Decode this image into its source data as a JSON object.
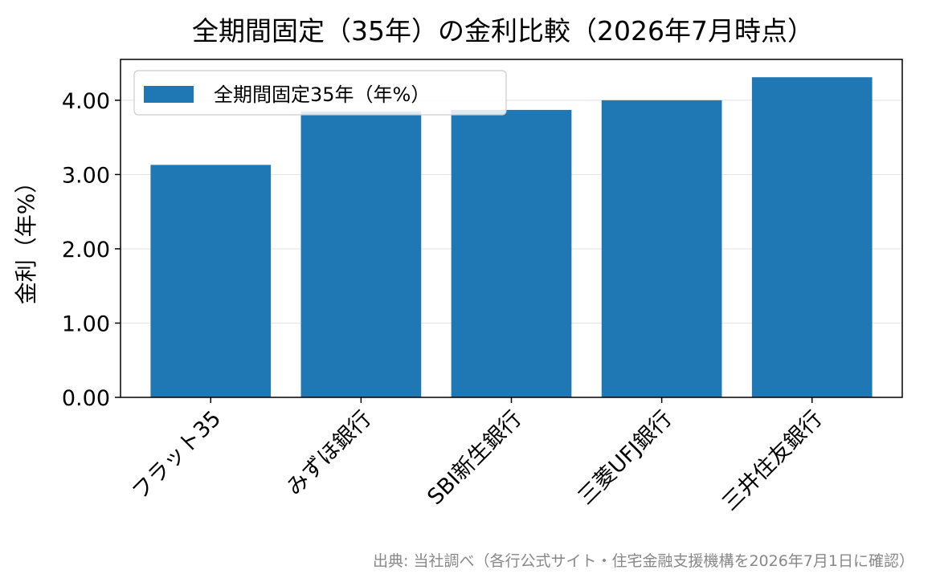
{
  "chart_data": {
    "type": "bar",
    "title": "全期間固定（35年）の金利比較（2026年7月時点）",
    "xlabel": "",
    "ylabel": "金利（年%）",
    "categories": [
      "フラット35",
      "みずほ銀行",
      "SBI新生銀行",
      "三菱UFJ銀行",
      "三井住友銀行"
    ],
    "series": [
      {
        "name": "全期間固定35年（年%）",
        "values": [
          3.13,
          3.85,
          3.87,
          4.0,
          4.31
        ],
        "color": "#1f77b4"
      }
    ],
    "ylim": [
      0,
      4.55
    ],
    "yticks": [
      0,
      1,
      2,
      3,
      4
    ],
    "ytick_labels": [
      "0.00",
      "1.00",
      "2.00",
      "3.00",
      "4.00"
    ],
    "grid": "y",
    "grid_color": "#e6e6e6",
    "legend_position": "upper-left",
    "source_note": "出典: 当社調べ（各行公式サイト・住宅金融支援機構を2026年7月1日に確認）"
  }
}
